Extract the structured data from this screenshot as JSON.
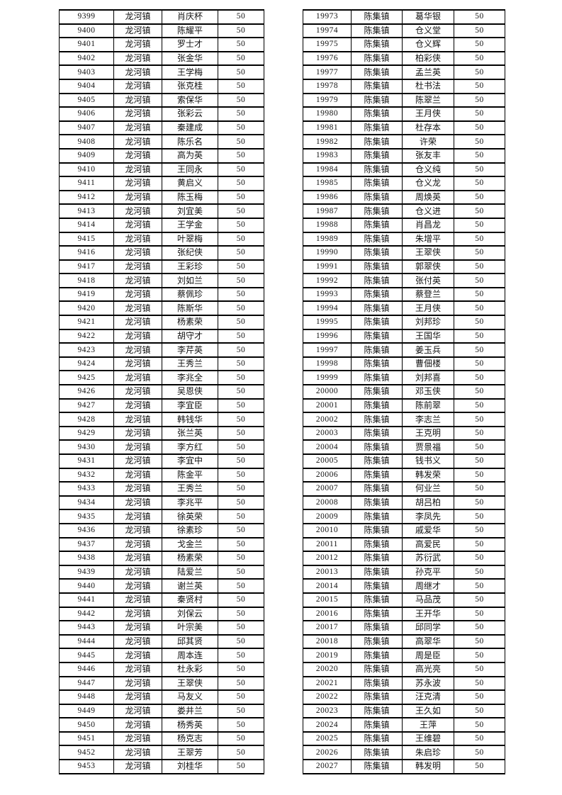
{
  "page": {
    "background": "#ffffff",
    "text_color": "#111111",
    "border_color": "#000000"
  },
  "tables": [
    {
      "name": "left-roster",
      "rows": [
        [
          "9399",
          "龙河镇",
          "肖庆杯",
          "50"
        ],
        [
          "9400",
          "龙河镇",
          "陈耀平",
          "50"
        ],
        [
          "9401",
          "龙河镇",
          "罗士才",
          "50"
        ],
        [
          "9402",
          "龙河镇",
          "张金华",
          "50"
        ],
        [
          "9403",
          "龙河镇",
          "王学梅",
          "50"
        ],
        [
          "9404",
          "龙河镇",
          "张克桂",
          "50"
        ],
        [
          "9405",
          "龙河镇",
          "索保华",
          "50"
        ],
        [
          "9406",
          "龙河镇",
          "张彩云",
          "50"
        ],
        [
          "9407",
          "龙河镇",
          "秦建成",
          "50"
        ],
        [
          "9408",
          "龙河镇",
          "陈乐名",
          "50"
        ],
        [
          "9409",
          "龙河镇",
          "高为英",
          "50"
        ],
        [
          "9410",
          "龙河镇",
          "王同永",
          "50"
        ],
        [
          "9411",
          "龙河镇",
          "黄启义",
          "50"
        ],
        [
          "9412",
          "龙河镇",
          "陈玉梅",
          "50"
        ],
        [
          "9413",
          "龙河镇",
          "刘宜美",
          "50"
        ],
        [
          "9414",
          "龙河镇",
          "王学金",
          "50"
        ],
        [
          "9415",
          "龙河镇",
          "叶翠梅",
          "50"
        ],
        [
          "9416",
          "龙河镇",
          "张纪侠",
          "50"
        ],
        [
          "9417",
          "龙河镇",
          "王彩珍",
          "50"
        ],
        [
          "9418",
          "龙河镇",
          "刘如兰",
          "50"
        ],
        [
          "9419",
          "龙河镇",
          "蔡佩珍",
          "50"
        ],
        [
          "9420",
          "龙河镇",
          "陈斯华",
          "50"
        ],
        [
          "9421",
          "龙河镇",
          "杨素荣",
          "50"
        ],
        [
          "9422",
          "龙河镇",
          "胡守才",
          "50"
        ],
        [
          "9423",
          "龙河镇",
          "李芹英",
          "50"
        ],
        [
          "9424",
          "龙河镇",
          "王秀兰",
          "50"
        ],
        [
          "9425",
          "龙河镇",
          "李兆全",
          "50"
        ],
        [
          "9426",
          "龙河镇",
          "吴恩侠",
          "50"
        ],
        [
          "9427",
          "龙河镇",
          "李宜臣",
          "50"
        ],
        [
          "9428",
          "龙河镇",
          "韩钱华",
          "50"
        ],
        [
          "9429",
          "龙河镇",
          "张兰英",
          "50"
        ],
        [
          "9430",
          "龙河镇",
          "李方红",
          "50"
        ],
        [
          "9431",
          "龙河镇",
          "李宜中",
          "50"
        ],
        [
          "9432",
          "龙河镇",
          "陈金平",
          "50"
        ],
        [
          "9433",
          "龙河镇",
          "王秀兰",
          "50"
        ],
        [
          "9434",
          "龙河镇",
          "李兆平",
          "50"
        ],
        [
          "9435",
          "龙河镇",
          "徐英荣",
          "50"
        ],
        [
          "9436",
          "龙河镇",
          "徐素珍",
          "50"
        ],
        [
          "9437",
          "龙河镇",
          "戈金兰",
          "50"
        ],
        [
          "9438",
          "龙河镇",
          "杨素荣",
          "50"
        ],
        [
          "9439",
          "龙河镇",
          "陆爱兰",
          "50"
        ],
        [
          "9440",
          "龙河镇",
          "谢兰英",
          "50"
        ],
        [
          "9441",
          "龙河镇",
          "秦贤村",
          "50"
        ],
        [
          "9442",
          "龙河镇",
          "刘保云",
          "50"
        ],
        [
          "9443",
          "龙河镇",
          "叶宗美",
          "50"
        ],
        [
          "9444",
          "龙河镇",
          "邱其贤",
          "50"
        ],
        [
          "9445",
          "龙河镇",
          "周本连",
          "50"
        ],
        [
          "9446",
          "龙河镇",
          "杜永彩",
          "50"
        ],
        [
          "9447",
          "龙河镇",
          "王翠侠",
          "50"
        ],
        [
          "9448",
          "龙河镇",
          "马友义",
          "50"
        ],
        [
          "9449",
          "龙河镇",
          "娄井兰",
          "50"
        ],
        [
          "9450",
          "龙河镇",
          "杨秀英",
          "50"
        ],
        [
          "9451",
          "龙河镇",
          "杨克志",
          "50"
        ],
        [
          "9452",
          "龙河镇",
          "王翠芳",
          "50"
        ],
        [
          "9453",
          "龙河镇",
          "刘桂华",
          "50"
        ]
      ]
    },
    {
      "name": "right-roster",
      "rows": [
        [
          "19973",
          "陈集镇",
          "葛华银",
          "50"
        ],
        [
          "19974",
          "陈集镇",
          "仓义堂",
          "50"
        ],
        [
          "19975",
          "陈集镇",
          "仓义辉",
          "50"
        ],
        [
          "19976",
          "陈集镇",
          "柏彩侠",
          "50"
        ],
        [
          "19977",
          "陈集镇",
          "孟兰英",
          "50"
        ],
        [
          "19978",
          "陈集镇",
          "杜书法",
          "50"
        ],
        [
          "19979",
          "陈集镇",
          "陈翠兰",
          "50"
        ],
        [
          "19980",
          "陈集镇",
          "王月侠",
          "50"
        ],
        [
          "19981",
          "陈集镇",
          "杜存本",
          "50"
        ],
        [
          "19982",
          "陈集镇",
          "许荣",
          "50"
        ],
        [
          "19983",
          "陈集镇",
          "张友丰",
          "50"
        ],
        [
          "19984",
          "陈集镇",
          "仓义纯",
          "50"
        ],
        [
          "19985",
          "陈集镇",
          "仓义龙",
          "50"
        ],
        [
          "19986",
          "陈集镇",
          "周焕英",
          "50"
        ],
        [
          "19987",
          "陈集镇",
          "仓义进",
          "50"
        ],
        [
          "19988",
          "陈集镇",
          "肖昌龙",
          "50"
        ],
        [
          "19989",
          "陈集镇",
          "朱增平",
          "50"
        ],
        [
          "19990",
          "陈集镇",
          "王翠侠",
          "50"
        ],
        [
          "19991",
          "陈集镇",
          "郭翠侠",
          "50"
        ],
        [
          "19992",
          "陈集镇",
          "张付英",
          "50"
        ],
        [
          "19993",
          "陈集镇",
          "蔡登兰",
          "50"
        ],
        [
          "19994",
          "陈集镇",
          "王月侠",
          "50"
        ],
        [
          "19995",
          "陈集镇",
          "刘邦珍",
          "50"
        ],
        [
          "19996",
          "陈集镇",
          "王国华",
          "50"
        ],
        [
          "19997",
          "陈集镇",
          "姜玉兵",
          "50"
        ],
        [
          "19998",
          "陈集镇",
          "曹佃楼",
          "50"
        ],
        [
          "19999",
          "陈集镇",
          "刘邦喜",
          "50"
        ],
        [
          "20000",
          "陈集镇",
          "邓玉侠",
          "50"
        ],
        [
          "20001",
          "陈集镇",
          "陈前翠",
          "50"
        ],
        [
          "20002",
          "陈集镇",
          "李志兰",
          "50"
        ],
        [
          "20003",
          "陈集镇",
          "王克明",
          "50"
        ],
        [
          "20004",
          "陈集镇",
          "贾景福",
          "50"
        ],
        [
          "20005",
          "陈集镇",
          "钱书义",
          "50"
        ],
        [
          "20006",
          "陈集镇",
          "韩发荣",
          "50"
        ],
        [
          "20007",
          "陈集镇",
          "何业兰",
          "50"
        ],
        [
          "20008",
          "陈集镇",
          "胡吕柏",
          "50"
        ],
        [
          "20009",
          "陈集镇",
          "李凤先",
          "50"
        ],
        [
          "20010",
          "陈集镇",
          "戚爱华",
          "50"
        ],
        [
          "20011",
          "陈集镇",
          "高爱民",
          "50"
        ],
        [
          "20012",
          "陈集镇",
          "苏衍武",
          "50"
        ],
        [
          "20013",
          "陈集镇",
          "孙克平",
          "50"
        ],
        [
          "20014",
          "陈集镇",
          "周继才",
          "50"
        ],
        [
          "20015",
          "陈集镇",
          "马品茂",
          "50"
        ],
        [
          "20016",
          "陈集镇",
          "王开华",
          "50"
        ],
        [
          "20017",
          "陈集镇",
          "邱同学",
          "50"
        ],
        [
          "20018",
          "陈集镇",
          "高翠华",
          "50"
        ],
        [
          "20019",
          "陈集镇",
          "周是臣",
          "50"
        ],
        [
          "20020",
          "陈集镇",
          "高光亮",
          "50"
        ],
        [
          "20021",
          "陈集镇",
          "苏永波",
          "50"
        ],
        [
          "20022",
          "陈集镇",
          "汪克清",
          "50"
        ],
        [
          "20023",
          "陈集镇",
          "王久如",
          "50"
        ],
        [
          "20024",
          "陈集镇",
          "王萍",
          "50"
        ],
        [
          "20025",
          "陈集镇",
          "王维碧",
          "50"
        ],
        [
          "20026",
          "陈集镇",
          "朱启珍",
          "50"
        ],
        [
          "20027",
          "陈集镇",
          "韩发明",
          "50"
        ]
      ]
    }
  ]
}
